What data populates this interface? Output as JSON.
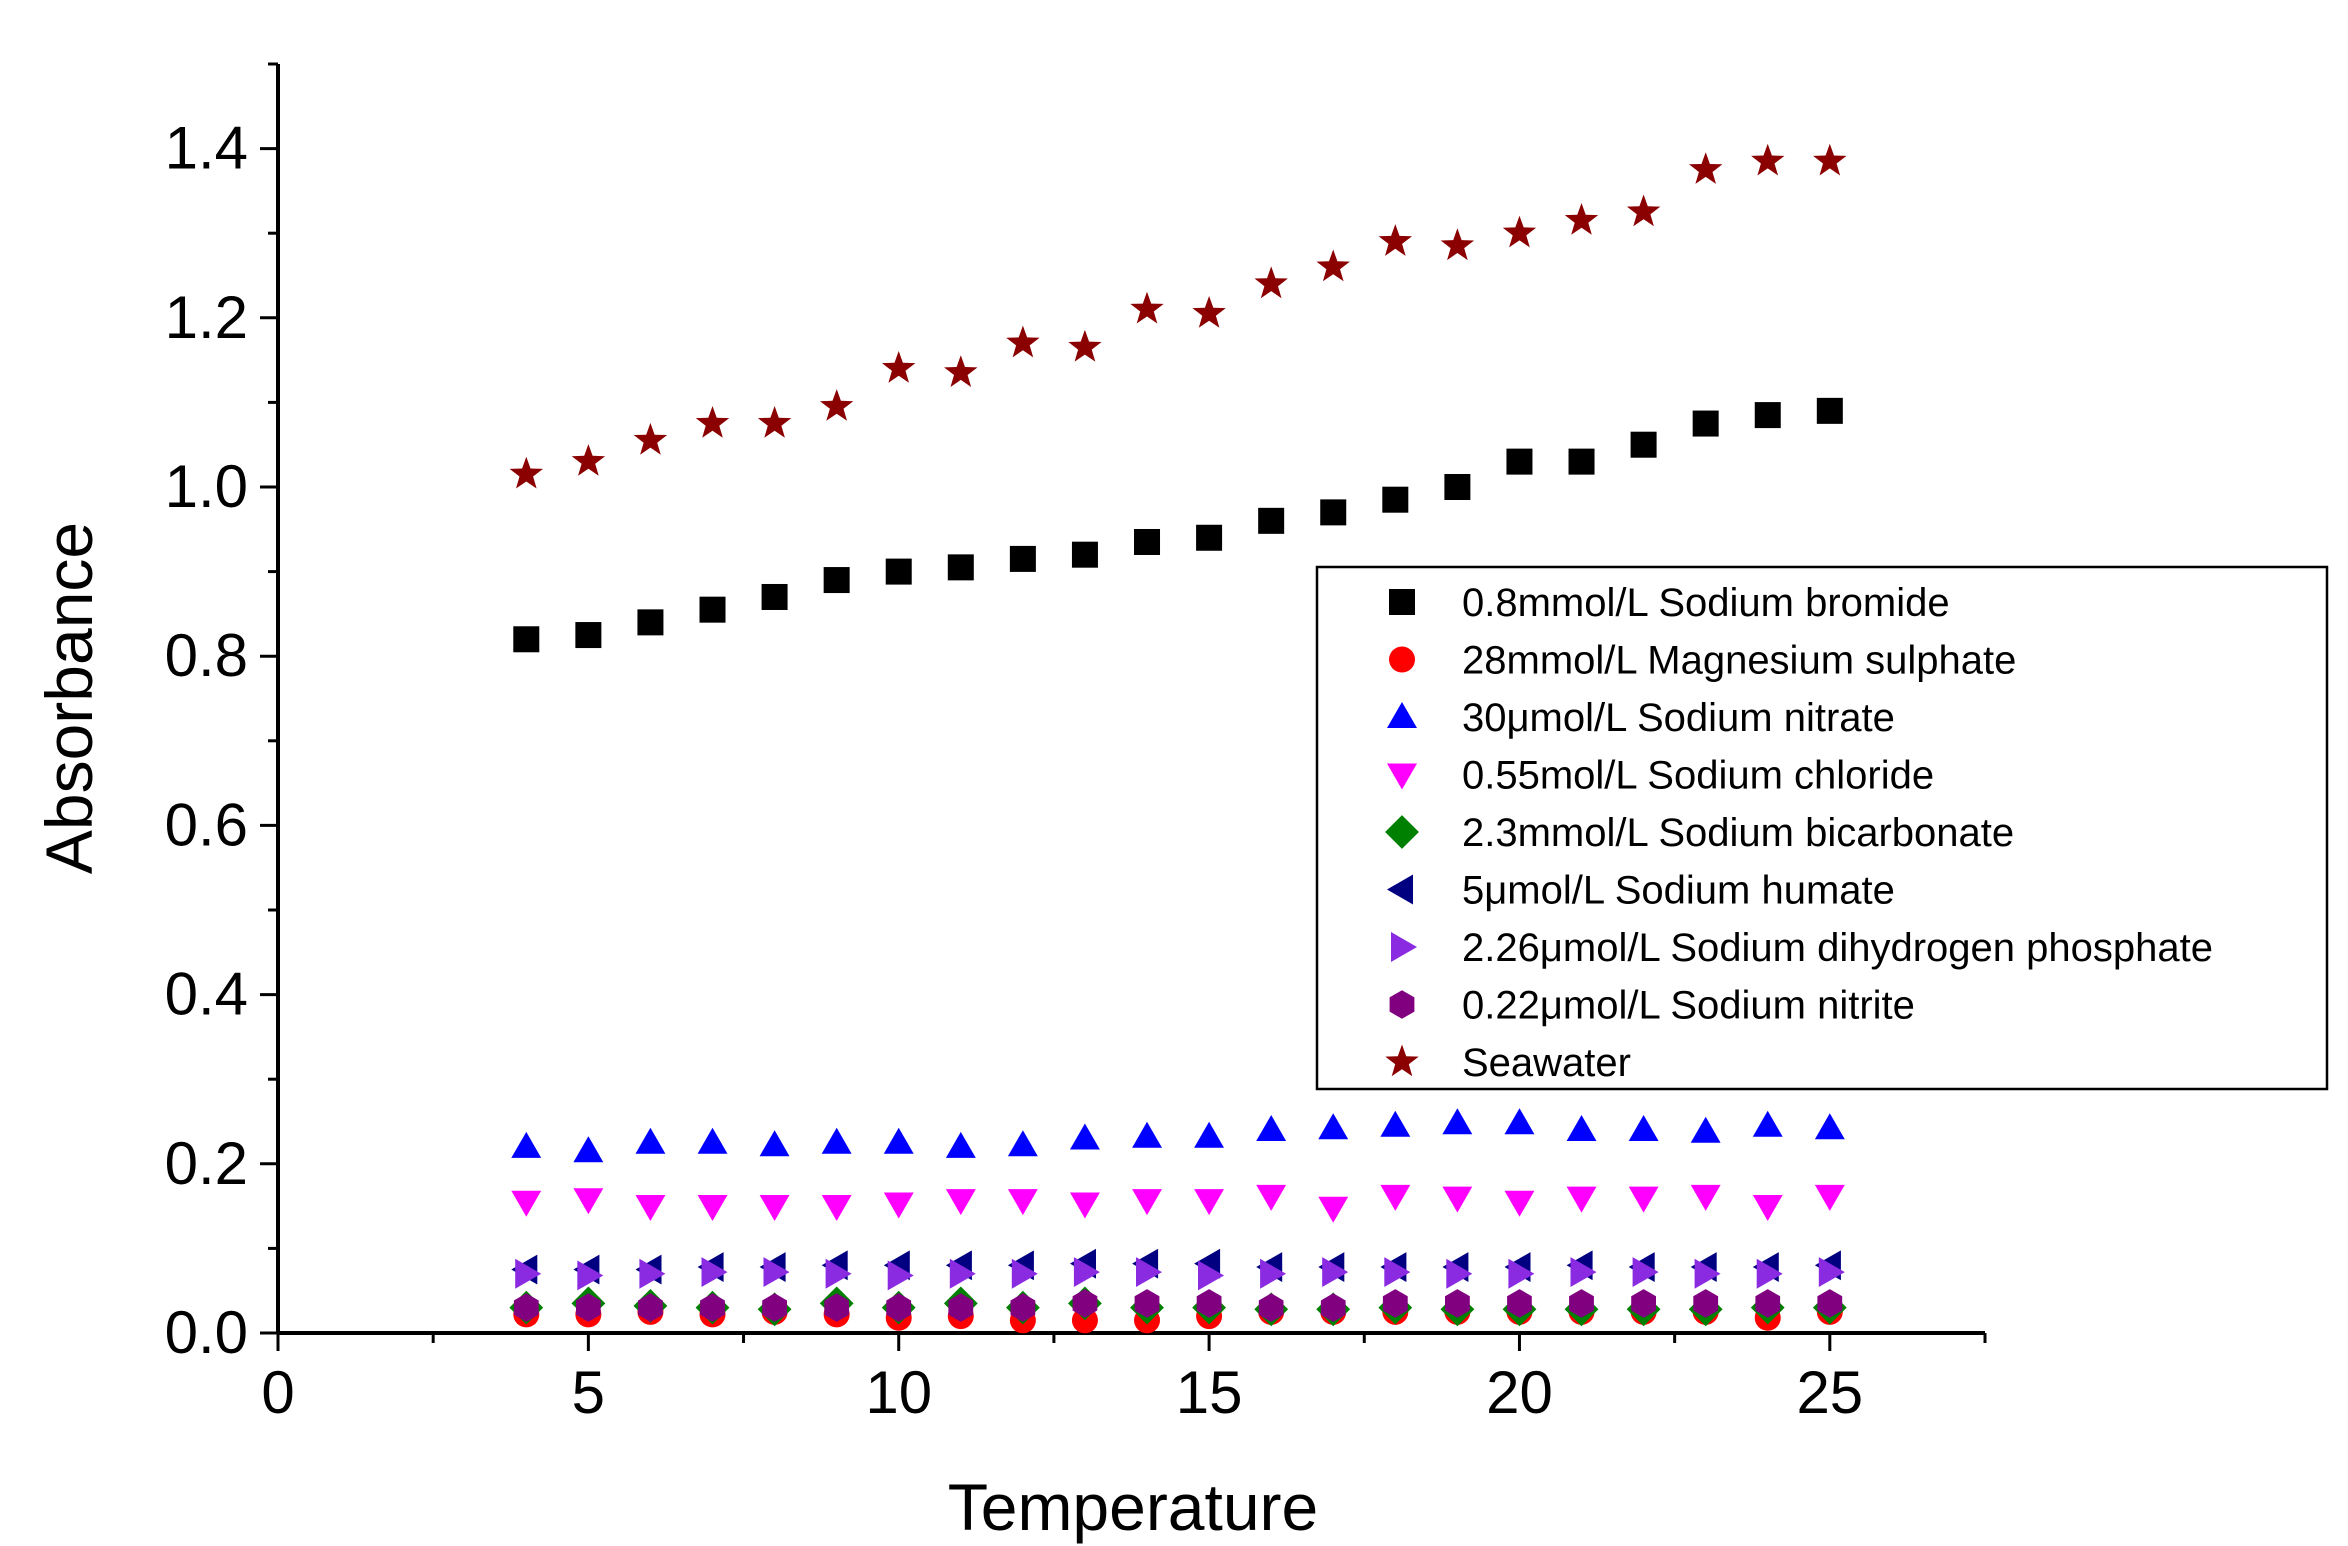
{
  "chart_data": {
    "type": "scatter",
    "title": "",
    "xlabel": "Temperature",
    "ylabel": "Absorbance",
    "xlim": [
      0,
      27.5
    ],
    "ylim": [
      0,
      1.5
    ],
    "xticks": [
      "0",
      "5",
      "10",
      "15",
      "20",
      "25"
    ],
    "yticks": [
      "0.0",
      "0.2",
      "0.4",
      "0.6",
      "0.8",
      "1.0",
      "1.2",
      "1.4"
    ],
    "legend_position": "center-right",
    "x": [
      4,
      5,
      6,
      7,
      8,
      9,
      10,
      11,
      12,
      13,
      14,
      15,
      16,
      17,
      18,
      19,
      20,
      21,
      22,
      23,
      24,
      25
    ],
    "series": [
      {
        "name": "0.8mmol/L Sodium bromide",
        "marker": "square",
        "color": "#000000",
        "values": [
          0.82,
          0.825,
          0.84,
          0.855,
          0.87,
          0.89,
          0.9,
          0.905,
          0.915,
          0.92,
          0.935,
          0.94,
          0.96,
          0.97,
          0.985,
          1.0,
          1.03,
          1.03,
          1.05,
          1.075,
          1.085,
          1.09
        ]
      },
      {
        "name": "28mmol/L Magnesium sulphate",
        "marker": "circle",
        "color": "#ff0000",
        "values": [
          0.022,
          0.022,
          0.025,
          0.022,
          0.025,
          0.022,
          0.018,
          0.02,
          0.015,
          0.015,
          0.015,
          0.02,
          0.025,
          0.025,
          0.025,
          0.025,
          0.025,
          0.025,
          0.025,
          0.025,
          0.018,
          0.025
        ]
      },
      {
        "name": "30μmol/L Sodium nitrate",
        "marker": "triangle-up",
        "color": "#0000ff",
        "values": [
          0.22,
          0.215,
          0.225,
          0.225,
          0.222,
          0.225,
          0.225,
          0.22,
          0.222,
          0.23,
          0.232,
          0.232,
          0.24,
          0.242,
          0.245,
          0.248,
          0.248,
          0.24,
          0.24,
          0.238,
          0.245,
          0.242
        ]
      },
      {
        "name": "0.55mol/L Sodium chloride",
        "marker": "triangle-down",
        "color": "#ff00ff",
        "values": [
          0.155,
          0.158,
          0.15,
          0.15,
          0.15,
          0.15,
          0.153,
          0.157,
          0.157,
          0.153,
          0.157,
          0.157,
          0.162,
          0.148,
          0.162,
          0.16,
          0.155,
          0.16,
          0.16,
          0.162,
          0.15,
          0.162
        ]
      },
      {
        "name": "2.3mmol/L Sodium bicarbonate",
        "marker": "diamond",
        "color": "#008000",
        "values": [
          0.03,
          0.035,
          0.032,
          0.03,
          0.028,
          0.035,
          0.03,
          0.035,
          0.03,
          0.035,
          0.03,
          0.03,
          0.028,
          0.028,
          0.03,
          0.028,
          0.028,
          0.028,
          0.028,
          0.028,
          0.03,
          0.03
        ]
      },
      {
        "name": "5μmol/L Sodium humate",
        "marker": "triangle-left",
        "color": "#000080",
        "values": [
          0.075,
          0.075,
          0.075,
          0.078,
          0.078,
          0.08,
          0.08,
          0.08,
          0.08,
          0.082,
          0.082,
          0.082,
          0.078,
          0.078,
          0.078,
          0.078,
          0.078,
          0.08,
          0.078,
          0.078,
          0.078,
          0.08
        ]
      },
      {
        "name": "2.26μmol/L Sodium dihydrogen phosphate",
        "marker": "triangle-right",
        "color": "#8a2be2",
        "values": [
          0.07,
          0.068,
          0.07,
          0.072,
          0.072,
          0.07,
          0.068,
          0.07,
          0.07,
          0.072,
          0.072,
          0.068,
          0.07,
          0.072,
          0.072,
          0.07,
          0.07,
          0.072,
          0.072,
          0.07,
          0.07,
          0.072
        ]
      },
      {
        "name": "0.22μmol/L Sodium nitrite",
        "marker": "hexagon",
        "color": "#800080",
        "values": [
          0.03,
          0.03,
          0.03,
          0.03,
          0.03,
          0.03,
          0.03,
          0.03,
          0.03,
          0.035,
          0.035,
          0.035,
          0.03,
          0.03,
          0.035,
          0.035,
          0.035,
          0.035,
          0.035,
          0.035,
          0.035,
          0.035
        ]
      },
      {
        "name": "Seawater",
        "marker": "star",
        "color": "#8b0000",
        "values": [
          1.015,
          1.03,
          1.055,
          1.075,
          1.075,
          1.095,
          1.14,
          1.135,
          1.17,
          1.165,
          1.21,
          1.205,
          1.24,
          1.26,
          1.29,
          1.285,
          1.3,
          1.315,
          1.325,
          1.375,
          1.385,
          1.385
        ]
      }
    ]
  }
}
